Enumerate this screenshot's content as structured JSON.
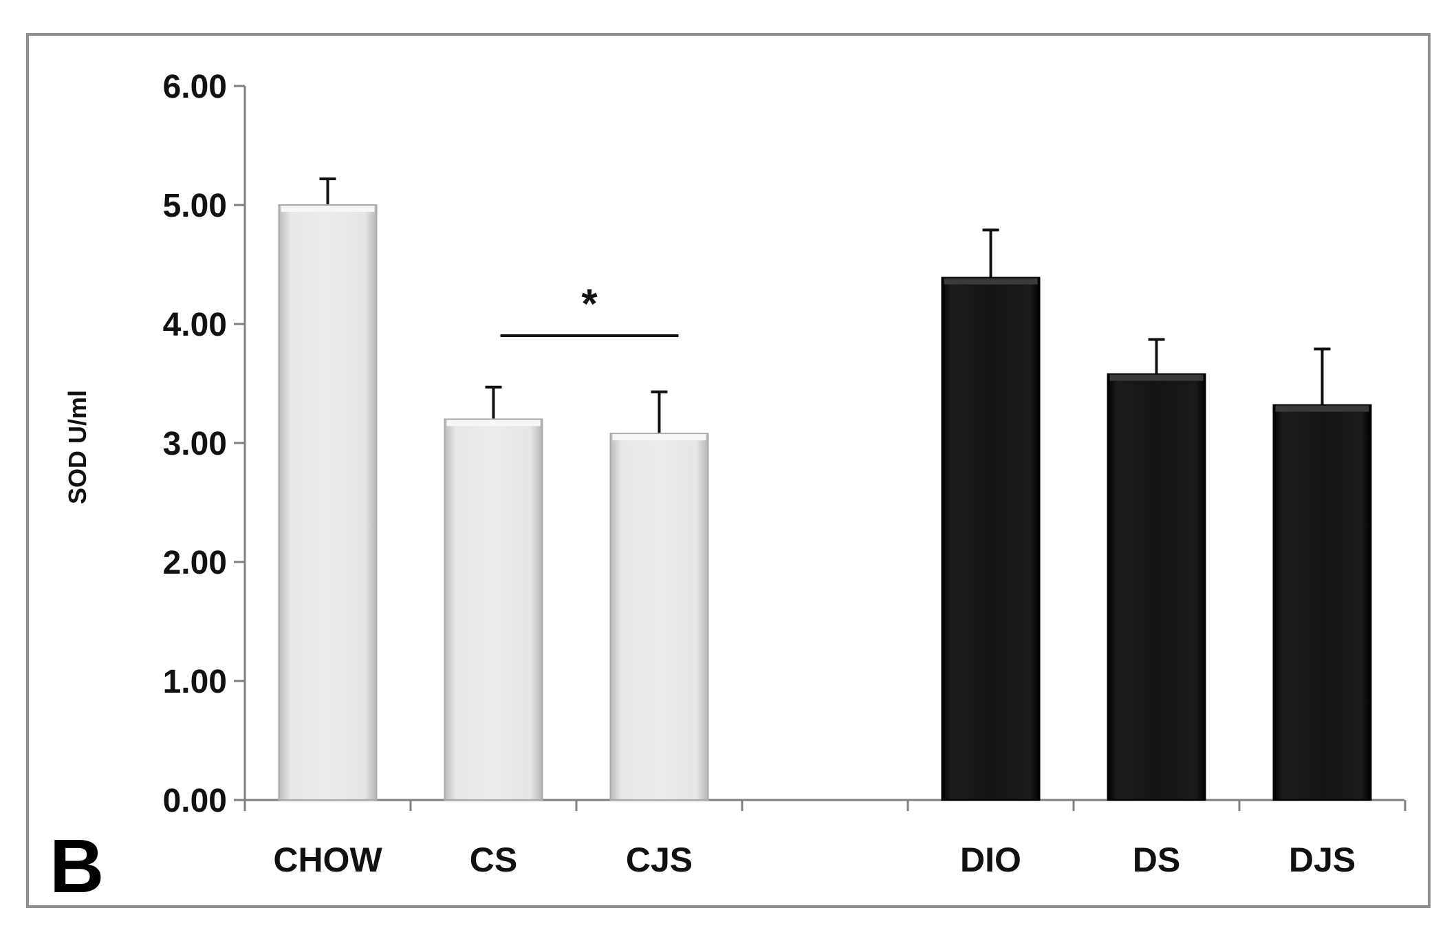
{
  "panel_label": "B",
  "chart_data": {
    "type": "bar",
    "ylabel": "SOD U/ml",
    "xlabel": "",
    "title": "",
    "ylim": [
      0,
      6
    ],
    "yticks": [
      "0.00",
      "1.00",
      "2.00",
      "3.00",
      "4.00",
      "5.00",
      "6.00"
    ],
    "categories": [
      "CHOW",
      "CS",
      "CJS",
      "DIO",
      "DS",
      "DJS"
    ],
    "values": [
      5.0,
      3.2,
      3.08,
      4.39,
      3.58,
      3.32
    ],
    "errors": [
      0.22,
      0.27,
      0.35,
      0.4,
      0.29,
      0.47
    ],
    "bar_colors": [
      "#e2e2e2",
      "#e2e2e2",
      "#e2e2e2",
      "#111111",
      "#111111",
      "#111111"
    ],
    "grid": false,
    "significance": {
      "from": "CS",
      "to": "CJS",
      "label": "*"
    }
  }
}
